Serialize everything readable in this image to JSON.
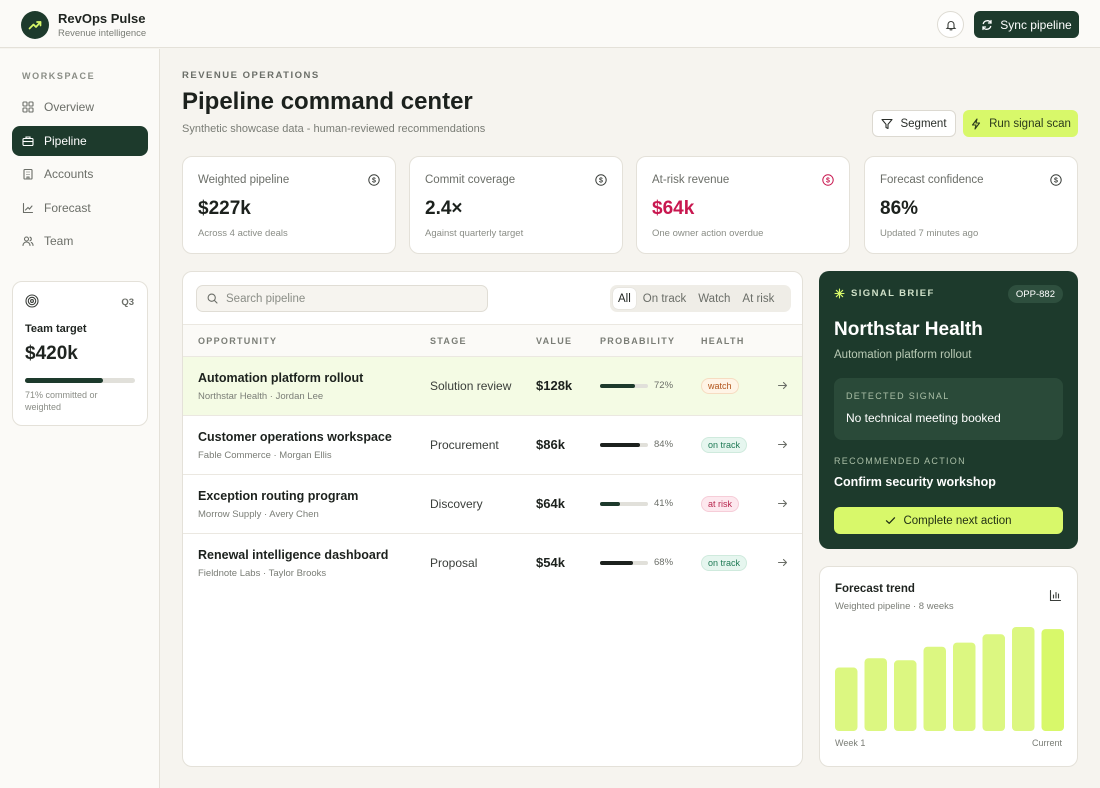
{
  "app": {
    "name": "RevOps Pulse",
    "subtitle": "Revenue intelligence"
  },
  "topbar": {
    "sync_label": "Sync pipeline"
  },
  "sidebar": {
    "heading": "WORKSPACE",
    "items": [
      {
        "label": "Overview",
        "icon": "grid-icon",
        "active": false
      },
      {
        "label": "Pipeline",
        "icon": "briefcase-icon",
        "active": true
      },
      {
        "label": "Accounts",
        "icon": "building-icon",
        "active": false
      },
      {
        "label": "Forecast",
        "icon": "line-chart-icon",
        "active": false
      },
      {
        "label": "Team",
        "icon": "users-icon",
        "active": false
      }
    ],
    "target": {
      "quarter": "Q3",
      "label": "Team target",
      "value": "$420k",
      "progress": 0.71,
      "note": "71% committed or weighted"
    }
  },
  "header": {
    "eyebrow": "REVENUE OPERATIONS",
    "title": "Pipeline command center",
    "subtitle": "Synthetic showcase data - human-reviewed recommendations",
    "segment_label": "Segment",
    "scan_label": "Run signal scan"
  },
  "kpis": [
    {
      "label": "Weighted pipeline",
      "value": "$227k",
      "note": "Across 4 active deals",
      "alert": false
    },
    {
      "label": "Commit coverage",
      "value": "2.4×",
      "note": "Against quarterly target",
      "alert": false
    },
    {
      "label": "At-risk revenue",
      "value": "$64k",
      "note": "One owner action overdue",
      "alert": true
    },
    {
      "label": "Forecast confidence",
      "value": "86%",
      "note": "Updated 7 minutes ago",
      "alert": false
    }
  ],
  "pipeline": {
    "search_placeholder": "Search pipeline",
    "filters": [
      "All",
      "On track",
      "Watch",
      "At risk"
    ],
    "active_filter": "All",
    "columns": [
      "OPPORTUNITY",
      "STAGE",
      "VALUE",
      "PROBABILITY",
      "HEALTH"
    ],
    "rows": [
      {
        "name": "Automation platform rollout",
        "meta": "Northstar Health · Jordan Lee",
        "stage": "Solution review",
        "value": "$128k",
        "probability": 72,
        "probability_label": "72%",
        "health": "watch"
      },
      {
        "name": "Customer operations workspace",
        "meta": "Fable Commerce · Morgan Ellis",
        "stage": "Procurement",
        "value": "$86k",
        "probability": 84,
        "probability_label": "84%",
        "health": "on track"
      },
      {
        "name": "Exception routing program",
        "meta": "Morrow Supply · Avery Chen",
        "stage": "Discovery",
        "value": "$64k",
        "probability": 41,
        "probability_label": "41%",
        "health": "at risk"
      },
      {
        "name": "Renewal intelligence dashboard",
        "meta": "Fieldnote Labs · Taylor Brooks",
        "stage": "Proposal",
        "value": "$54k",
        "probability": 68,
        "probability_label": "68%",
        "health": "on track"
      }
    ]
  },
  "signal": {
    "eyebrow": "SIGNAL BRIEF",
    "id": "OPP-882",
    "account": "Northstar Health",
    "opportunity": "Automation platform rollout",
    "detected_label": "DETECTED SIGNAL",
    "detected_text": "No technical meeting booked",
    "recommended_label": "RECOMMENDED ACTION",
    "recommended_text": "Confirm security workshop",
    "action_label": "Complete next action"
  },
  "trend": {
    "title": "Forecast trend",
    "subtitle": "Weighted pipeline · 8 weeks",
    "start_label": "Week 1",
    "end_label": "Current"
  },
  "chart_data": {
    "type": "bar",
    "title": "Forecast trend",
    "categories": [
      "Week 1",
      "",
      "",
      "",
      "",
      "",
      "",
      "Current"
    ],
    "values": [
      0.61,
      0.7,
      0.68,
      0.81,
      0.85,
      0.93,
      1.0,
      0.98
    ],
    "ylim": [
      0,
      1
    ],
    "grid": false
  },
  "colors": {
    "brand": "#1d3a2c",
    "accent": "#d8f86a",
    "alert": "#c8174f"
  }
}
